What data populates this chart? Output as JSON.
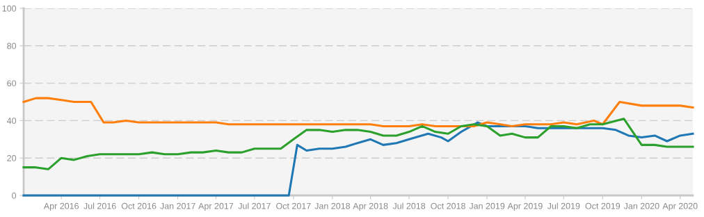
{
  "chart_data": {
    "type": "line",
    "xlim": [
      "2016-01-03",
      "2020-05-01"
    ],
    "ylim": [
      0,
      100
    ],
    "yticks": [
      0,
      20,
      40,
      60,
      80,
      100
    ],
    "xticks": [
      {
        "value": "2016-04-01",
        "label": "Apr 2016"
      },
      {
        "value": "2016-07-01",
        "label": "Jul 2016"
      },
      {
        "value": "2016-10-01",
        "label": "Oct 2016"
      },
      {
        "value": "2017-01-01",
        "label": "Jan 2017"
      },
      {
        "value": "2017-04-01",
        "label": "Apr 2017"
      },
      {
        "value": "2017-07-01",
        "label": "Jul 2017"
      },
      {
        "value": "2017-10-01",
        "label": "Oct 2017"
      },
      {
        "value": "2018-01-01",
        "label": "Jan 2018"
      },
      {
        "value": "2018-04-01",
        "label": "Apr 2018"
      },
      {
        "value": "2018-07-01",
        "label": "Jul 2018"
      },
      {
        "value": "2018-10-01",
        "label": "Oct 2018"
      },
      {
        "value": "2019-01-01",
        "label": "Jan 2019"
      },
      {
        "value": "2019-04-01",
        "label": "Apr 2019"
      },
      {
        "value": "2019-07-01",
        "label": "Jul 2019"
      },
      {
        "value": "2019-10-01",
        "label": "Oct 2019"
      },
      {
        "value": "2020-01-01",
        "label": "Jan 2020"
      },
      {
        "value": "2020-04-01",
        "label": "Apr 2020"
      }
    ],
    "grid": "y",
    "marker": "none",
    "line_style": "solid",
    "legend": false,
    "series": [
      {
        "color": "#1f77b4",
        "x": [
          "2016-01-03",
          "2016-07-01",
          "2017-01-01",
          "2017-07-01",
          "2017-09-20",
          "2017-10-10",
          "2017-11-01",
          "2017-12-01",
          "2018-01-01",
          "2018-02-01",
          "2018-03-01",
          "2018-04-01",
          "2018-05-01",
          "2018-06-01",
          "2018-07-01",
          "2018-08-15",
          "2018-09-15",
          "2018-10-01",
          "2018-11-01",
          "2018-12-10",
          "2019-01-01",
          "2019-02-01",
          "2019-03-01",
          "2019-04-01",
          "2019-05-01",
          "2019-07-01",
          "2019-10-01",
          "2019-11-01",
          "2019-12-01",
          "2020-01-01",
          "2020-02-01",
          "2020-03-01",
          "2020-04-01",
          "2020-05-01"
        ],
        "values": [
          0,
          0,
          0,
          0,
          0,
          27,
          24,
          25,
          25,
          26,
          28,
          30,
          27,
          28,
          30,
          33,
          31,
          29,
          34,
          39,
          37,
          37,
          37,
          37,
          36,
          36,
          36,
          35,
          32,
          31,
          32,
          29,
          32,
          33
        ]
      },
      {
        "color": "#ff7f0e",
        "x": [
          "2016-01-03",
          "2016-02-01",
          "2016-03-01",
          "2016-04-01",
          "2016-05-01",
          "2016-06-10",
          "2016-07-10",
          "2016-08-01",
          "2016-09-01",
          "2016-10-01",
          "2017-04-01",
          "2017-05-01",
          "2018-04-01",
          "2018-05-01",
          "2018-07-01",
          "2018-08-01",
          "2018-09-01",
          "2018-12-01",
          "2019-01-01",
          "2019-02-01",
          "2019-03-01",
          "2019-04-01",
          "2019-06-01",
          "2019-07-01",
          "2019-08-01",
          "2019-09-10",
          "2019-10-01",
          "2019-11-10",
          "2020-01-01",
          "2020-04-01",
          "2020-05-01"
        ],
        "values": [
          50,
          52,
          52,
          51,
          50,
          50,
          39,
          39,
          40,
          39,
          39,
          38,
          38,
          37,
          37,
          38,
          37,
          37,
          39,
          38,
          37,
          38,
          38,
          39,
          38,
          40,
          38,
          50,
          48,
          48,
          47
        ]
      },
      {
        "color": "#2ca02c",
        "x": [
          "2016-01-03",
          "2016-02-01",
          "2016-03-01",
          "2016-04-01",
          "2016-05-01",
          "2016-06-01",
          "2016-07-01",
          "2016-10-01",
          "2016-11-01",
          "2016-12-01",
          "2017-01-01",
          "2017-02-01",
          "2017-03-01",
          "2017-04-01",
          "2017-05-01",
          "2017-06-01",
          "2017-07-01",
          "2017-09-01",
          "2017-10-01",
          "2017-11-01",
          "2017-12-01",
          "2018-01-01",
          "2018-02-01",
          "2018-03-01",
          "2018-04-01",
          "2018-05-01",
          "2018-06-01",
          "2018-07-01",
          "2018-08-01",
          "2018-09-01",
          "2018-10-01",
          "2018-11-01",
          "2018-12-01",
          "2019-01-01",
          "2019-02-01",
          "2019-03-01",
          "2019-04-01",
          "2019-05-01",
          "2019-06-01",
          "2019-07-01",
          "2019-08-01",
          "2019-09-01",
          "2019-10-01",
          "2019-11-20",
          "2020-01-01",
          "2020-02-01",
          "2020-03-01",
          "2020-05-01"
        ],
        "values": [
          15,
          15,
          14,
          20,
          19,
          21,
          22,
          22,
          23,
          22,
          22,
          23,
          23,
          24,
          23,
          23,
          25,
          25,
          30,
          35,
          35,
          34,
          35,
          35,
          34,
          32,
          32,
          34,
          37,
          34,
          33,
          37,
          38,
          37,
          32,
          33,
          31,
          31,
          37,
          37,
          36,
          38,
          38,
          41,
          27,
          27,
          26,
          26
        ]
      }
    ]
  }
}
